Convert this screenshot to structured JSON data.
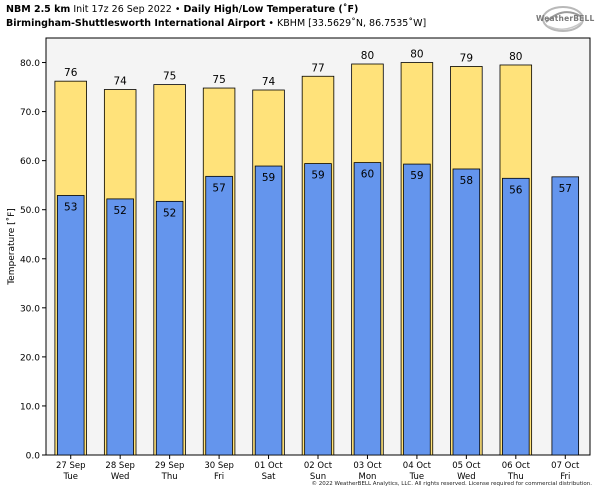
{
  "header": {
    "model": "NBM 2.5 km",
    "init": "Init 17z 26 Sep 2022",
    "sep1": "•",
    "product": "Daily High/Low Temperature (˚F)",
    "station": "Birmingham-Shuttlesworth International Airport",
    "sep2": "•",
    "station_info": "KBHM [33.5629˚N, 86.7535˚W]"
  },
  "logo": {
    "text": "WeatherBELL"
  },
  "footer": "© 2022 WeatherBELL Analytics, LLC. All rights reserved. License required for commercial distribution.",
  "colors": {
    "high": "#ffe27a",
    "low": "#6495ed",
    "plot_bg": "#f4f4f4",
    "edge": "#000000"
  },
  "chart_data": {
    "type": "bar",
    "categories": [
      "27 Sep",
      "28 Sep",
      "29 Sep",
      "30 Sep",
      "01 Oct",
      "02 Oct",
      "03 Oct",
      "04 Oct",
      "05 Oct",
      "06 Oct",
      "07 Oct"
    ],
    "weekdays": [
      "Tue",
      "Wed",
      "Thu",
      "Fri",
      "Sat",
      "Sun",
      "Mon",
      "Tue",
      "Wed",
      "Thu",
      "Fri"
    ],
    "series": [
      {
        "key": "high",
        "values": [
          76.2,
          74.5,
          75.5,
          74.8,
          74.4,
          77.2,
          79.7,
          80.0,
          79.2,
          79.5,
          null
        ],
        "labels": [
          "76",
          "74",
          "75",
          "75",
          "74",
          "77",
          "80",
          "80",
          "79",
          "80",
          ""
        ]
      },
      {
        "key": "low",
        "values": [
          52.9,
          52.2,
          51.7,
          56.8,
          58.9,
          59.4,
          59.6,
          59.3,
          58.3,
          56.4,
          56.7
        ],
        "labels": [
          "53",
          "52",
          "52",
          "57",
          "59",
          "59",
          "60",
          "59",
          "58",
          "56",
          "57"
        ]
      }
    ],
    "ylabel": "Temperature [˚F]",
    "ylim": [
      0,
      85
    ],
    "yticks": [
      0,
      10,
      20,
      30,
      40,
      50,
      60,
      70,
      80
    ],
    "ytick_labels": [
      "0.0",
      "10.0",
      "20.0",
      "30.0",
      "40.0",
      "50.0",
      "60.0",
      "70.0",
      "80.0"
    ],
    "grid": false
  }
}
